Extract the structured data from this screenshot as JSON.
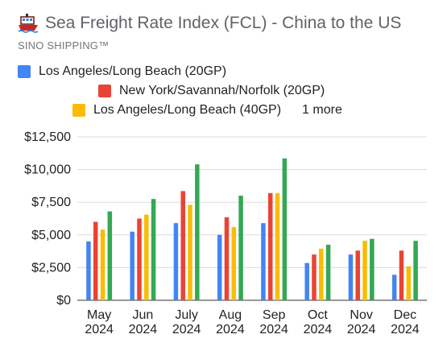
{
  "header": {
    "title": "Sea Freight Rate Index (FCL) - China to the US",
    "subtitle": "SINO SHIPPING™",
    "icon": "cargo-ship-icon"
  },
  "legend": {
    "more_label": "1 more"
  },
  "chart_data": {
    "type": "bar",
    "categories": [
      [
        "May",
        "2024"
      ],
      [
        "Jun",
        "2024"
      ],
      [
        "July",
        "2024"
      ],
      [
        "Aug",
        "2024"
      ],
      [
        "Sep",
        "2024"
      ],
      [
        "Oct",
        "2024"
      ],
      [
        "Nov",
        "2024"
      ],
      [
        "Dec",
        "2024"
      ]
    ],
    "series": [
      {
        "name": "Los Angeles/Long Beach (20GP)",
        "color": "#4285f4",
        "values": [
          4500,
          5250,
          5900,
          5000,
          5900,
          2850,
          3500,
          1950
        ]
      },
      {
        "name": "New York/Savannah/Norfolk (20GP)",
        "color": "#ea4335",
        "values": [
          6000,
          6250,
          8350,
          6350,
          8200,
          3500,
          3800,
          3800
        ]
      },
      {
        "name": "Los Angeles/Long Beach (40GP)",
        "color": "#fbbc04",
        "values": [
          5400,
          6550,
          7300,
          5600,
          8200,
          3950,
          4550,
          2600
        ]
      },
      {
        "values": [
          6800,
          7750,
          10400,
          8000,
          10850,
          4250,
          4700,
          4550
        ],
        "color": "#34a853"
      }
    ],
    "y_ticks": [
      "$0",
      "$2,500",
      "$5,000",
      "$7,500",
      "$10,000",
      "$12,500"
    ],
    "ylim": [
      0,
      12500
    ],
    "grid": true,
    "legend_position": "top"
  }
}
